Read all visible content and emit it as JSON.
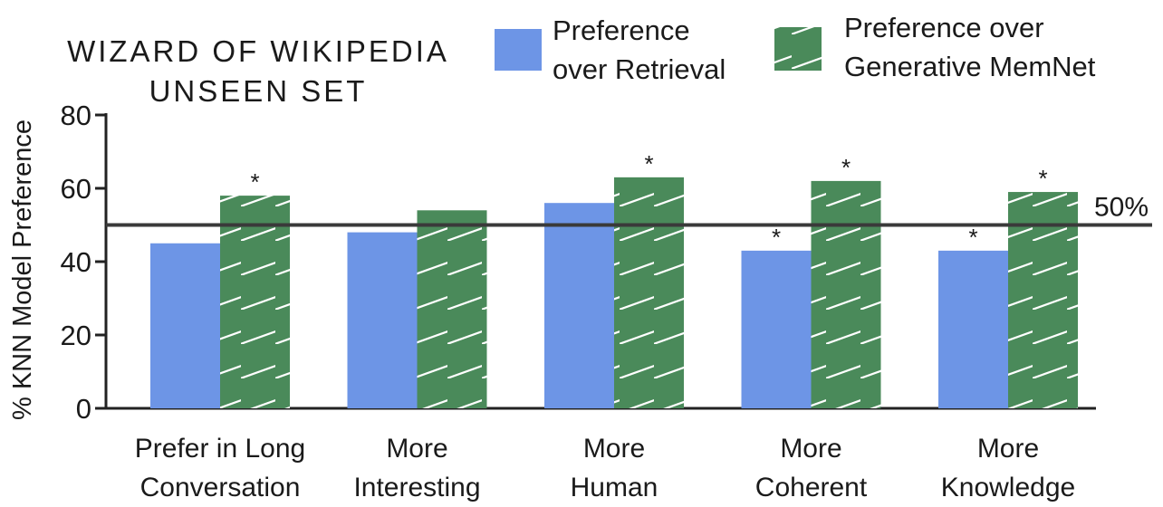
{
  "chart_data": {
    "type": "bar",
    "title_lines": [
      "WIZARD OF WIKIPEDIA",
      "UNSEEN SET"
    ],
    "ylabel": "% KNN Model Preference",
    "xlabel": "",
    "ylim": [
      0,
      80
    ],
    "yticks": [
      0,
      20,
      40,
      60,
      80
    ],
    "categories": [
      [
        "Prefer in Long",
        "Conversation"
      ],
      [
        "More",
        "Interesting"
      ],
      [
        "More",
        "Human"
      ],
      [
        "More",
        "Coherent"
      ],
      [
        "More",
        "Knowledge"
      ]
    ],
    "series": [
      {
        "name_lines": [
          "Preference",
          "over Retrieval"
        ],
        "color": "#6d95e6",
        "pattern": "solid",
        "values": [
          45,
          48,
          56,
          43,
          43
        ],
        "significant": [
          false,
          false,
          false,
          true,
          true
        ]
      },
      {
        "name_lines": [
          "Preference over",
          "Generative MemNet"
        ],
        "color": "#4a8a5a",
        "pattern": "hatched",
        "values": [
          58,
          54,
          63,
          62,
          59
        ],
        "significant": [
          true,
          false,
          true,
          true,
          true
        ]
      }
    ],
    "significance_marker": "*",
    "reference_line": {
      "value": 50,
      "label": "50%"
    },
    "grid": false,
    "legend_position": "top-right"
  }
}
